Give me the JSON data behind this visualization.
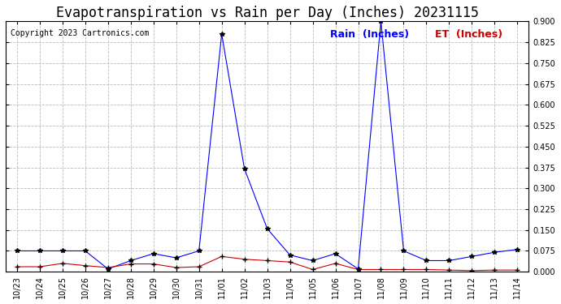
{
  "title": "Evapotranspiration vs Rain per Day (Inches) 20231115",
  "copyright": "Copyright 2023 Cartronics.com",
  "x_labels": [
    "10/23",
    "10/24",
    "10/25",
    "10/26",
    "10/27",
    "10/28",
    "10/29",
    "10/30",
    "10/31",
    "11/01",
    "11/02",
    "11/03",
    "11/04",
    "11/05",
    "11/06",
    "11/07",
    "11/08",
    "11/09",
    "11/10",
    "11/11",
    "11/12",
    "11/13",
    "11/14"
  ],
  "rain": [
    0.075,
    0.075,
    0.075,
    0.075,
    0.01,
    0.04,
    0.065,
    0.05,
    0.075,
    0.855,
    0.37,
    0.155,
    0.06,
    0.04,
    0.065,
    0.01,
    0.9,
    0.075,
    0.04,
    0.04,
    0.055,
    0.07,
    0.08
  ],
  "et": [
    0.018,
    0.018,
    0.03,
    0.022,
    0.015,
    0.028,
    0.028,
    0.015,
    0.018,
    0.055,
    0.045,
    0.04,
    0.035,
    0.008,
    0.03,
    0.008,
    0.008,
    0.008,
    0.008,
    0.006,
    0.004,
    0.006,
    0.006
  ],
  "rain_color": "#0000ff",
  "et_color": "#cc0000",
  "rain_label": "Rain  (Inches)",
  "et_label": "ET  (Inches)",
  "ylim": [
    0.0,
    0.9
  ],
  "yticks": [
    0.0,
    0.075,
    0.15,
    0.225,
    0.3,
    0.375,
    0.45,
    0.525,
    0.6,
    0.675,
    0.75,
    0.825,
    0.9
  ],
  "background_color": "#ffffff",
  "grid_color": "#bbbbbb",
  "title_fontsize": 12,
  "copyright_fontsize": 7,
  "legend_fontsize": 9,
  "tick_fontsize": 7
}
